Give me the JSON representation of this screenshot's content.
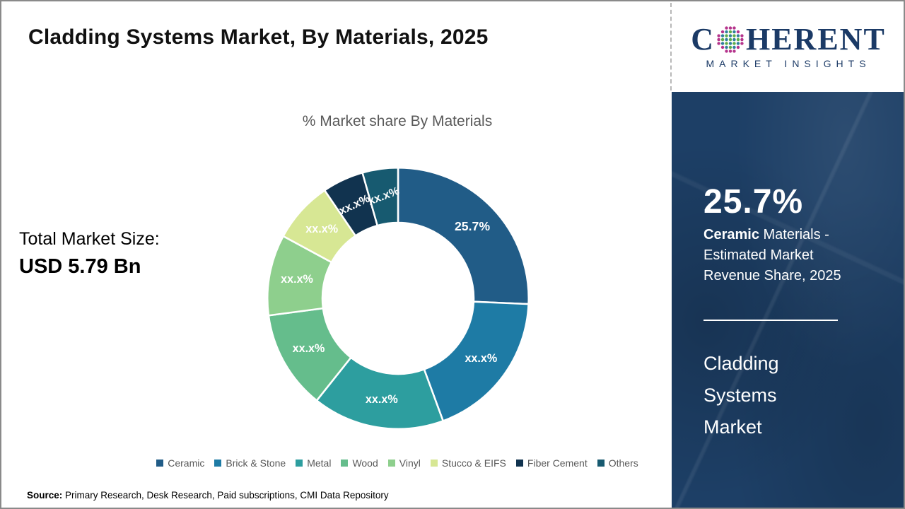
{
  "slide": {
    "title": "Cladding Systems Market, By Materials, 2025",
    "source_label": "Source:",
    "source_text": " Primary Research, Desk Research, Paid subscriptions, CMI Data Repository"
  },
  "logo": {
    "word_c": "C",
    "word_rest": "HERENT",
    "subtitle": "MARKET INSIGHTS",
    "navy": "#1b3a66",
    "dot_rim": "#b5348c",
    "dot_green": "#5fae49",
    "dot_teal": "#2f7f9d"
  },
  "left_stats": {
    "label": "Total Market Size:",
    "value": "USD 5.79 Bn"
  },
  "chart_data": {
    "type": "pie",
    "subtype": "donut",
    "title": "% Market share By Materials",
    "start_angle_deg": 0,
    "inner_radius_ratio": 0.58,
    "legend_position": "bottom",
    "segments": [
      {
        "label": "Ceramic",
        "value": 25.7,
        "display": "25.7%",
        "color": "#215c87",
        "label_rotation": 0,
        "emphasis": true
      },
      {
        "label": "Brick & Stone",
        "value": 18.7,
        "display": "xx.x%",
        "color": "#1e7ba5",
        "label_rotation": 0,
        "emphasis": false
      },
      {
        "label": "Metal",
        "value": 16.3,
        "display": "xx.x%",
        "color": "#2d9e9f",
        "label_rotation": 0,
        "emphasis": false
      },
      {
        "label": "Wood",
        "value": 12.2,
        "display": "xx.x%",
        "color": "#65bd8c",
        "label_rotation": 0,
        "emphasis": false
      },
      {
        "label": "Vinyl",
        "value": 10.0,
        "display": "xx.x%",
        "color": "#8ecf8d",
        "label_rotation": 0,
        "emphasis": false
      },
      {
        "label": "Stucco & EIFS",
        "value": 7.6,
        "display": "xx.x%",
        "color": "#d7e794",
        "label_rotation": 0,
        "emphasis": false
      },
      {
        "label": "Fiber Cement",
        "value": 5.1,
        "display": "xx.x%",
        "color": "#11334f",
        "label_rotation": -25,
        "emphasis": false
      },
      {
        "label": "Others",
        "value": 4.4,
        "display": "xx.x%",
        "color": "#175a70",
        "label_rotation": -20,
        "emphasis": false
      }
    ]
  },
  "panel": {
    "headline_value": "25.7%",
    "desc_bold": "Ceramic",
    "desc_rest": " Materials - Estimated Market Revenue Share, 2025",
    "market_name": "Cladding Systems Market",
    "bg_color": "#1d3f66"
  }
}
